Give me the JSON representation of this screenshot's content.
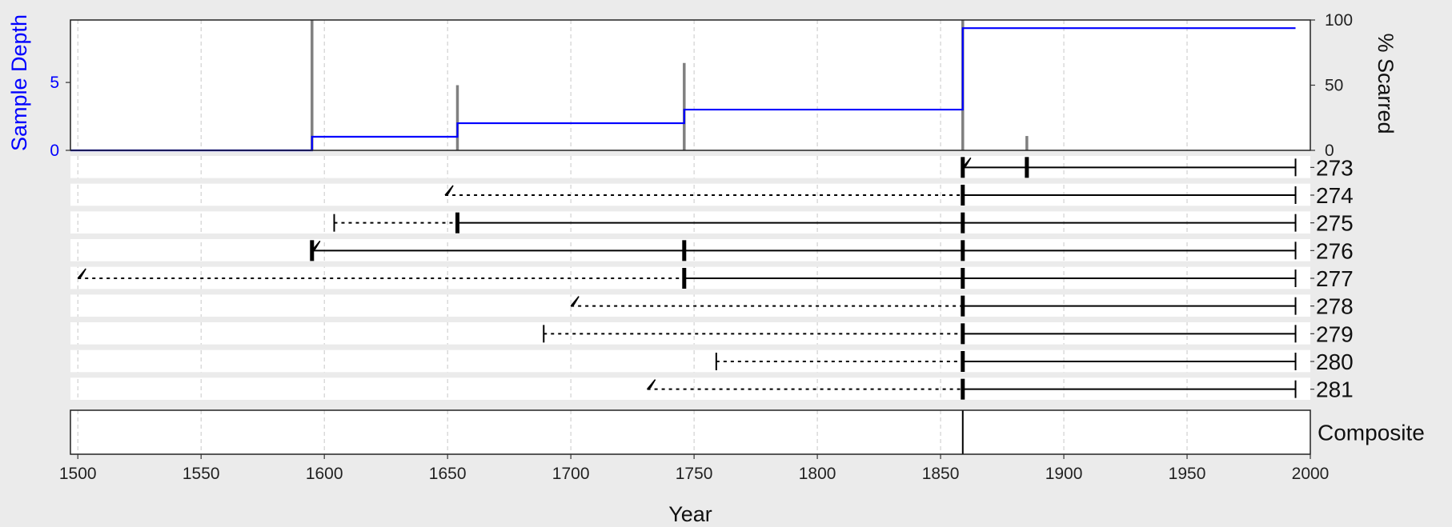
{
  "chart_data": {
    "type": "fire-history",
    "xlabel": "Year",
    "xlim": [
      1497,
      2000
    ],
    "xticks": [
      1500,
      1550,
      1600,
      1650,
      1700,
      1750,
      1800,
      1850,
      1900,
      1950,
      2000
    ],
    "grid": true,
    "top_panel": {
      "left_axis": {
        "label": "Sample Depth",
        "ticks": [
          0,
          5
        ],
        "ylim": [
          0,
          9.6
        ],
        "color": "#0000ff"
      },
      "right_axis": {
        "label": "% Scarred",
        "ticks": [
          0,
          50,
          100
        ],
        "ylim": [
          0,
          100
        ]
      },
      "sample_depth": [
        {
          "x": 1497,
          "y": 0
        },
        {
          "x": 1595,
          "y": 0
        },
        {
          "x": 1595,
          "y": 1
        },
        {
          "x": 1654,
          "y": 1
        },
        {
          "x": 1654,
          "y": 2
        },
        {
          "x": 1746,
          "y": 2
        },
        {
          "x": 1746,
          "y": 3
        },
        {
          "x": 1859,
          "y": 3
        },
        {
          "x": 1859,
          "y": 9
        },
        {
          "x": 1994,
          "y": 9
        }
      ],
      "percent_scarred": [
        {
          "year": 1595,
          "value": 100
        },
        {
          "year": 1654,
          "value": 50
        },
        {
          "year": 1746,
          "value": 67
        },
        {
          "year": 1859,
          "value": 100
        },
        {
          "year": 1885,
          "value": 11
        }
      ]
    },
    "series": [
      {
        "name": "273",
        "start": 1859,
        "start_type": "pith",
        "inner_end": 1859,
        "end": 1994,
        "scars": [
          1859,
          1885
        ]
      },
      {
        "name": "274",
        "start": 1649,
        "start_type": "pith",
        "inner_end": 1859,
        "end": 1994,
        "scars": [
          1859
        ]
      },
      {
        "name": "275",
        "start": 1604,
        "start_type": "inner",
        "inner_end": 1654,
        "end": 1994,
        "scars": [
          1654,
          1859
        ]
      },
      {
        "name": "276",
        "start": 1595,
        "start_type": "pith",
        "inner_end": 1595,
        "end": 1994,
        "scars": [
          1595,
          1746,
          1859
        ]
      },
      {
        "name": "277",
        "start": 1500,
        "start_type": "pith",
        "inner_end": 1746,
        "end": 1994,
        "scars": [
          1746,
          1859
        ]
      },
      {
        "name": "278",
        "start": 1700,
        "start_type": "pith",
        "inner_end": 1859,
        "end": 1994,
        "scars": [
          1859
        ]
      },
      {
        "name": "279",
        "start": 1689,
        "start_type": "inner",
        "inner_end": 1859,
        "end": 1994,
        "scars": [
          1859
        ]
      },
      {
        "name": "280",
        "start": 1759,
        "start_type": "inner",
        "inner_end": 1859,
        "end": 1994,
        "scars": [
          1859
        ]
      },
      {
        "name": "281",
        "start": 1731,
        "start_type": "pith",
        "inner_end": 1859,
        "end": 1994,
        "scars": [
          1859
        ]
      }
    ],
    "composite": {
      "label": "Composite",
      "events": [
        1859
      ]
    }
  }
}
